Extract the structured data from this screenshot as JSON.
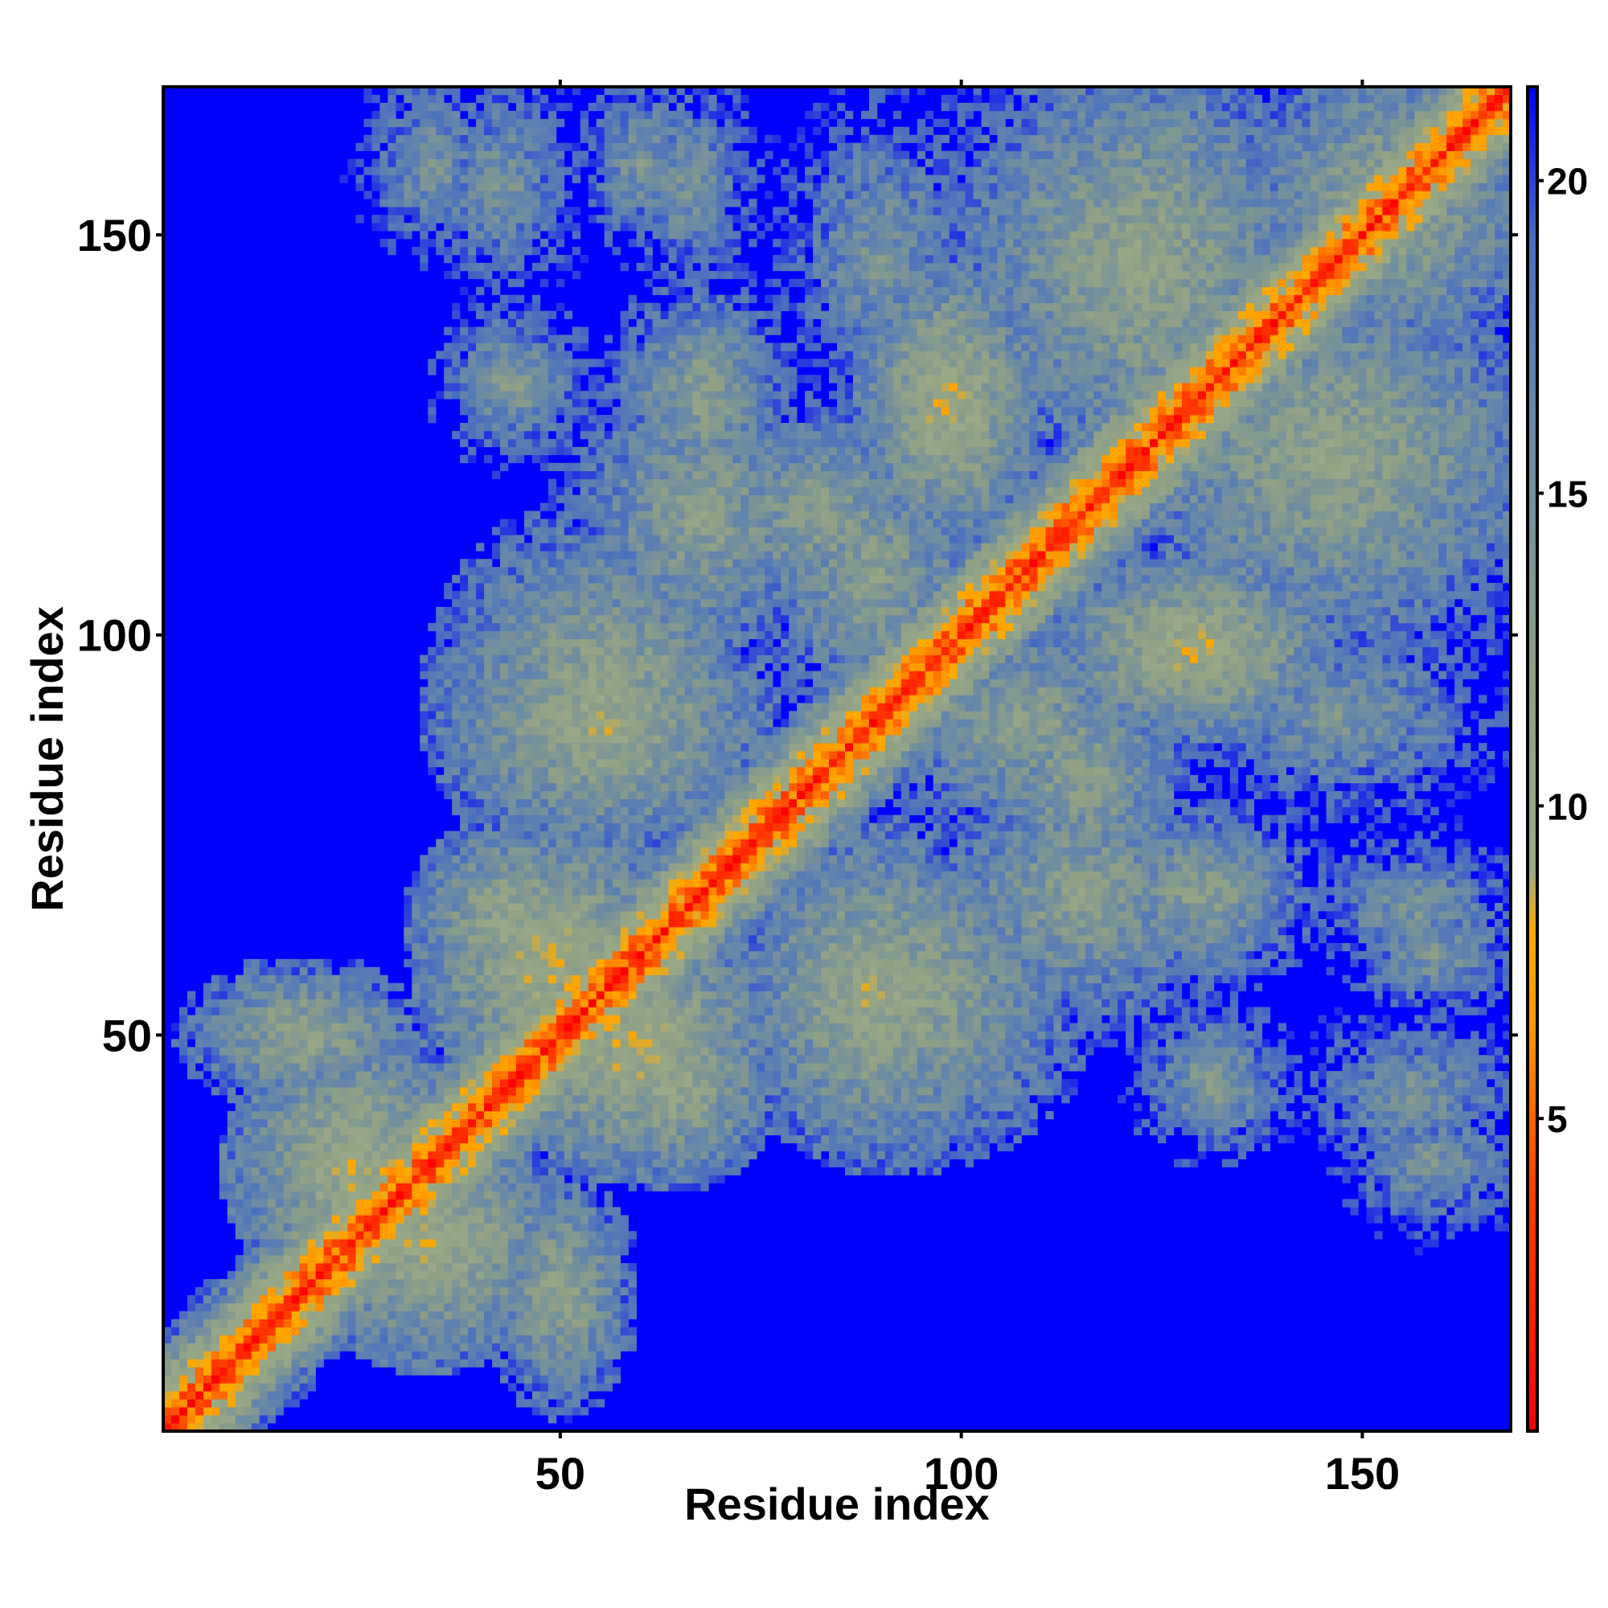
{
  "chart_data": {
    "type": "heatmap",
    "title": "",
    "xlabel": "Residue index",
    "ylabel": "Residue index",
    "n_residues": 168,
    "xlim": [
      1,
      168
    ],
    "ylim": [
      1,
      168
    ],
    "x_ticks": [
      50,
      100,
      150
    ],
    "y_ticks": [
      50,
      100,
      150
    ],
    "colorbar": {
      "ticks": [
        5,
        10,
        15,
        20
      ],
      "range": [
        0,
        21.5
      ],
      "stops": [
        {
          "value": 0,
          "color": "#ff0000"
        },
        {
          "value": 4,
          "color": "#ff4000"
        },
        {
          "value": 6.5,
          "color": "#ff9900"
        },
        {
          "value": 8,
          "color": "#ffaa00"
        },
        {
          "value": 9,
          "color": "#9aaa88"
        },
        {
          "value": 12,
          "color": "#8fa085"
        },
        {
          "value": 16,
          "color": "#6a8aa6"
        },
        {
          "value": 19,
          "color": "#4a6ec0"
        },
        {
          "value": 21.5,
          "color": "#0000ff"
        }
      ],
      "background_color": "#0000ff"
    },
    "contact_blocks": [
      {
        "x": [
          22,
          45
        ],
        "y": [
          14,
          35
        ],
        "d": 9.5
      },
      {
        "x": [
          8,
          28
        ],
        "y": [
          45,
          55
        ],
        "d": 11
      },
      {
        "x": [
          38,
          60
        ],
        "y": [
          48,
          70
        ],
        "d": 9
      },
      {
        "x": [
          55,
          72
        ],
        "y": [
          36,
          52
        ],
        "d": 10
      },
      {
        "x": [
          40,
          70
        ],
        "y": [
          78,
          100
        ],
        "d": 10
      },
      {
        "x": [
          38,
          50
        ],
        "y": [
          125,
          138
        ],
        "d": 13
      },
      {
        "x": [
          60,
          75
        ],
        "y": [
          120,
          140
        ],
        "d": 12
      },
      {
        "x": [
          75,
          110
        ],
        "y": [
          40,
          70
        ],
        "d": 11
      },
      {
        "x": [
          70,
          95
        ],
        "y": [
          105,
          125
        ],
        "d": 12
      },
      {
        "x": [
          80,
          100
        ],
        "y": [
          130,
          165
        ],
        "d": 14
      },
      {
        "x": [
          95,
          120
        ],
        "y": [
          78,
          100
        ],
        "d": 12
      },
      {
        "x": [
          100,
          130
        ],
        "y": [
          55,
          80
        ],
        "d": 12
      },
      {
        "x": [
          105,
          140
        ],
        "y": [
          125,
          168
        ],
        "d": 11
      },
      {
        "x": [
          118,
          140
        ],
        "y": [
          92,
          105
        ],
        "d": 9
      },
      {
        "x": [
          130,
          168
        ],
        "y": [
          100,
          140
        ],
        "d": 12
      },
      {
        "x": [
          140,
          168
        ],
        "y": [
          140,
          168
        ],
        "d": 11
      },
      {
        "x": [
          145,
          168
        ],
        "y": [
          60,
          72
        ],
        "d": 14
      },
      {
        "x": [
          145,
          168
        ],
        "y": [
          35,
          50
        ],
        "d": 14
      },
      {
        "x": [
          28,
          40
        ],
        "y": [
          150,
          168
        ],
        "d": 14
      },
      {
        "x": [
          55,
          65
        ],
        "y": [
          150,
          168
        ],
        "d": 14
      }
    ]
  }
}
